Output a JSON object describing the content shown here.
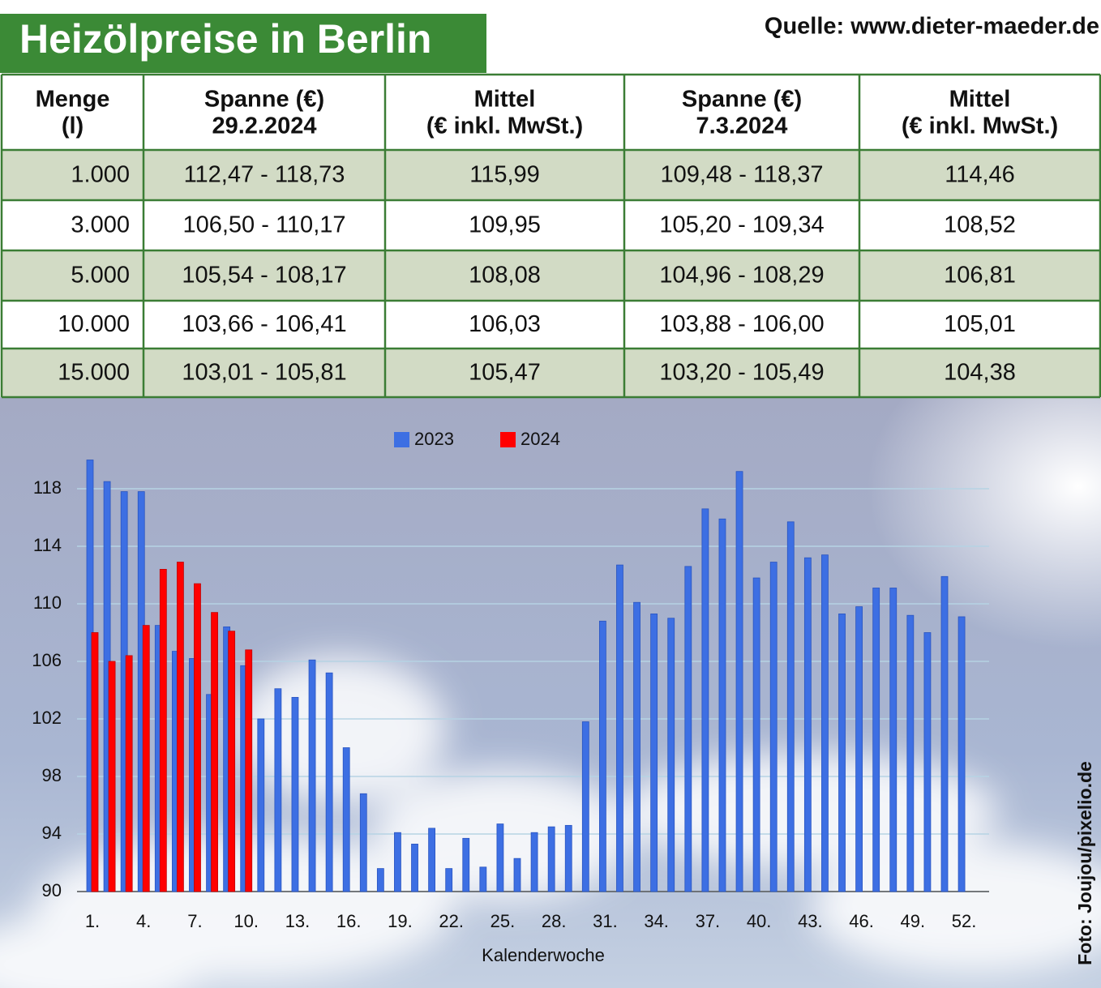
{
  "header": {
    "title": "Heizölpreise in Berlin",
    "source": "Quelle: www.dieter-maeder.de"
  },
  "table": {
    "columns": [
      [
        "Menge",
        "(l)"
      ],
      [
        "Spanne (€)",
        "29.2.2024"
      ],
      [
        "Mittel",
        "(€ inkl. MwSt.)"
      ],
      [
        "Spanne (€)",
        "7.3.2024"
      ],
      [
        "Mittel",
        "(€ inkl. MwSt.)"
      ]
    ],
    "rows": [
      [
        "1.000",
        "112,47 - 118,73",
        "115,99",
        "109,48 - 118,37",
        "114,46"
      ],
      [
        "3.000",
        "106,50 - 110,17",
        "109,95",
        "105,20 - 109,34",
        "108,52"
      ],
      [
        "5.000",
        "105,54 - 108,17",
        "108,08",
        "104,96 - 108,29",
        "106,81"
      ],
      [
        "10.000",
        "103,66 - 106,41",
        "106,03",
        "103,88 - 106,00",
        "105,01"
      ],
      [
        "15.000",
        "103,01 - 105,81",
        "105,47",
        "103,20 - 105,49",
        "104,38"
      ]
    ]
  },
  "chart_data": {
    "type": "bar",
    "x_label": "Kalenderwoche",
    "categories": [
      "1.",
      null,
      null,
      "4.",
      null,
      null,
      "7.",
      null,
      null,
      "10.",
      null,
      null,
      "13.",
      null,
      null,
      "16.",
      null,
      null,
      "19.",
      null,
      null,
      "22.",
      null,
      null,
      "25.",
      null,
      null,
      "28.",
      null,
      null,
      "31.",
      null,
      null,
      "34.",
      null,
      null,
      "37.",
      null,
      null,
      "40.",
      null,
      null,
      "43.",
      null,
      null,
      "46.",
      null,
      null,
      "49.",
      null,
      null,
      "52."
    ],
    "series": [
      {
        "name": "2023",
        "color": "#3d6fe3",
        "values": [
          120.0,
          118.5,
          117.8,
          117.8,
          108.5,
          106.7,
          106.2,
          103.7,
          108.4,
          105.7,
          102.0,
          104.1,
          103.5,
          106.1,
          105.2,
          100.0,
          96.8,
          91.6,
          94.1,
          93.3,
          94.4,
          91.6,
          93.7,
          91.7,
          94.7,
          92.3,
          94.1,
          94.5,
          94.6,
          101.8,
          108.8,
          112.7,
          110.1,
          109.3,
          109.0,
          112.6,
          116.6,
          115.9,
          119.2,
          111.8,
          112.9,
          115.7,
          113.2,
          113.4,
          109.3,
          109.8,
          111.1,
          111.1,
          109.2,
          108.0,
          111.9,
          109.1
        ]
      },
      {
        "name": "2024",
        "color": "#ff0000",
        "values": [
          108.0,
          106.0,
          106.4,
          108.5,
          112.4,
          112.9,
          111.4,
          109.4,
          108.1,
          106.8,
          null,
          null,
          null,
          null,
          null,
          null,
          null,
          null,
          null,
          null,
          null,
          null,
          null,
          null,
          null,
          null,
          null,
          null,
          null,
          null,
          null,
          null,
          null,
          null,
          null,
          null,
          null,
          null,
          null,
          null,
          null,
          null,
          null,
          null,
          null,
          null,
          null,
          null,
          null,
          null,
          null,
          null
        ]
      }
    ],
    "ylim": [
      90,
      120
    ],
    "yticks": [
      90,
      94,
      98,
      102,
      106,
      110,
      114,
      118
    ],
    "grid": true,
    "legend": "top"
  },
  "credit": "Foto: Joujou/pixelio.de"
}
